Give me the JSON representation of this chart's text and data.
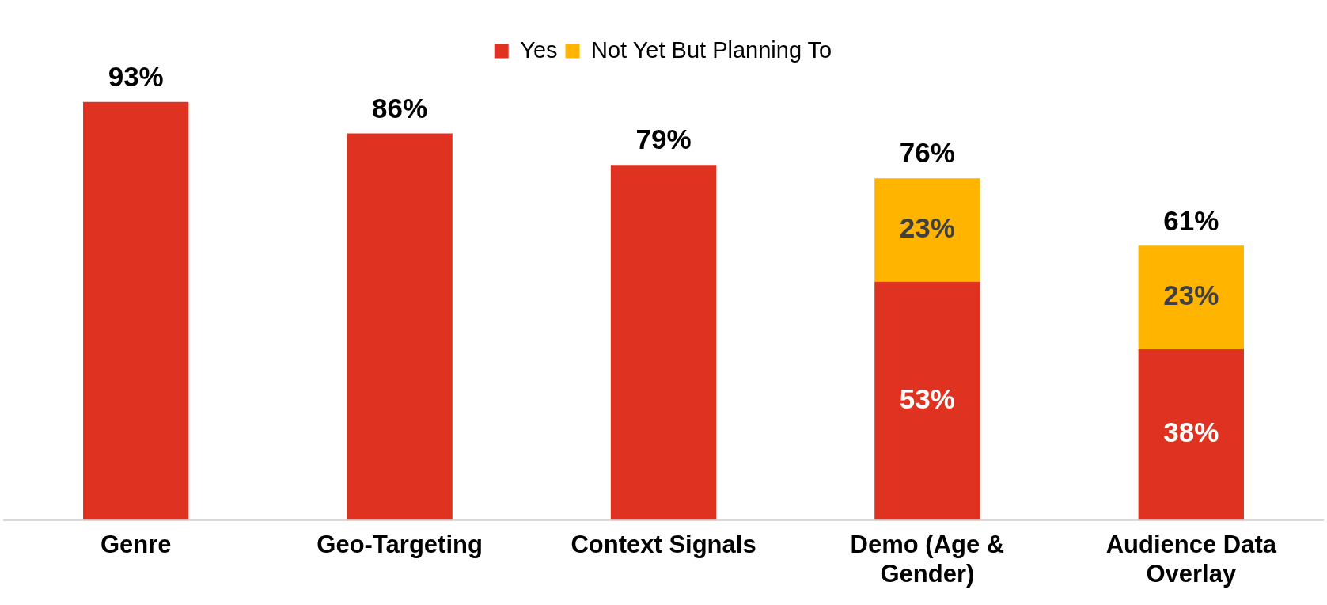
{
  "chart_data": {
    "type": "bar",
    "stacked": true,
    "legend": "top",
    "grid": false,
    "categories": [
      "Genre",
      "Geo-Targeting",
      "Context Signals",
      "Demo (Age & Gender)",
      "Audience Data Overlay"
    ],
    "series": [
      {
        "name": "Yes",
        "color": "#e03220",
        "values": [
          93,
          86,
          79,
          53,
          38
        ],
        "value_labels": [
          null,
          null,
          null,
          "53%",
          "38%"
        ]
      },
      {
        "name": "Not Yet But Planning To",
        "color": "#ffb400",
        "values": [
          null,
          null,
          null,
          23,
          23
        ],
        "value_labels": [
          null,
          null,
          null,
          "23%",
          "23%"
        ]
      }
    ],
    "totals": [
      "93%",
      "86%",
      "79%",
      "76%",
      "61%"
    ]
  }
}
